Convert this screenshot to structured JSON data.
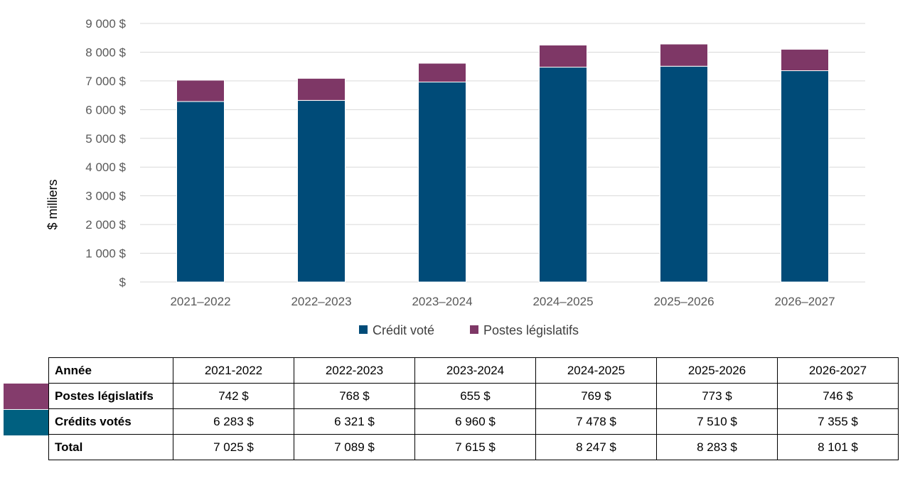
{
  "chart_data": {
    "type": "bar",
    "stacked": true,
    "categories": [
      "2021–2022",
      "2022–2023",
      "2023–2024",
      "2024–2025",
      "2025–2026",
      "2026–2027"
    ],
    "series": [
      {
        "name": "Crédit voté",
        "color": "#004b78",
        "values": [
          6283,
          6321,
          6960,
          7478,
          7510,
          7355
        ]
      },
      {
        "name": "Postes législatifs",
        "color": "#7e3766",
        "values": [
          742,
          768,
          655,
          769,
          773,
          746
        ]
      }
    ],
    "ylabel": "$ milliers",
    "ylim": [
      0,
      9000
    ],
    "yticks": [
      {
        "value": 0,
        "label": "$"
      },
      {
        "value": 1000,
        "label": "1 000 $"
      },
      {
        "value": 2000,
        "label": "2 000 $"
      },
      {
        "value": 3000,
        "label": "3 000 $"
      },
      {
        "value": 4000,
        "label": "4 000 $"
      },
      {
        "value": 5000,
        "label": "5 000 $"
      },
      {
        "value": 6000,
        "label": "6 000 $"
      },
      {
        "value": 7000,
        "label": "7 000 $"
      },
      {
        "value": 8000,
        "label": "8 000 $"
      },
      {
        "value": 9000,
        "label": "9 000 $"
      }
    ],
    "grid": true,
    "legend_position": "bottom"
  },
  "table": {
    "header_label": "Année",
    "years": [
      "2021-2022",
      "2022-2023",
      "2023-2024",
      "2024-2025",
      "2025-2026",
      "2026-2027"
    ],
    "rows": [
      {
        "label": "Postes législatifs",
        "color": "#843c6c",
        "values": [
          "742 $",
          "768 $",
          "655 $",
          "769 $",
          "773 $",
          "746  $"
        ]
      },
      {
        "label": "Crédits votés",
        "color": "#006080",
        "values": [
          "6 283 $",
          "6 321 $",
          "6 960 $",
          "7 478 $",
          "7 510 $",
          "7 355 $"
        ]
      },
      {
        "label": "Total",
        "values": [
          "7 025 $",
          "7 089 $",
          "7 615 $",
          "8 247 $",
          "8 283 $",
          "8 101 $"
        ]
      }
    ]
  }
}
